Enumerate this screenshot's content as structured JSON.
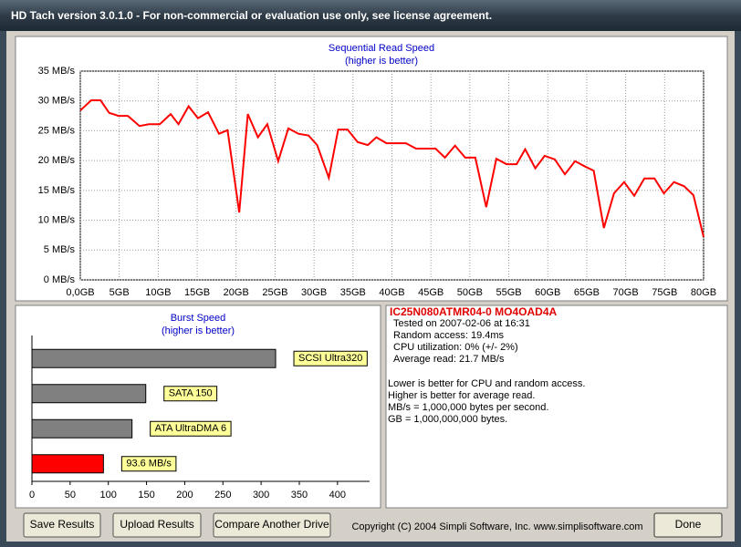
{
  "window": {
    "title": "HD Tach version 3.0.1.0  - For non-commercial or evaluation use only, see license agreement."
  },
  "chart_data": [
    {
      "type": "line",
      "title": "Sequential Read Speed",
      "subtitle": "(higher is better)",
      "color": "#ff0000",
      "grid": true,
      "x": [
        0.0,
        1.4,
        2.6,
        3.7,
        4.9,
        6.1,
        7.6,
        8.8,
        10.2,
        11.6,
        12.6,
        13.9,
        15.1,
        16.4,
        17.8,
        18.9,
        20.4,
        21.5,
        22.8,
        24.0,
        25.4,
        26.7,
        28.0,
        29.3,
        30.4,
        31.9,
        33.1,
        34.3,
        35.6,
        36.9,
        38.0,
        39.3,
        40.6,
        41.8,
        43.1,
        44.3,
        45.6,
        46.8,
        48.1,
        49.4,
        50.7,
        52.1,
        53.4,
        54.7,
        56.0,
        57.1,
        58.4,
        59.6,
        60.9,
        62.2,
        63.5,
        64.8,
        65.9,
        67.2,
        68.5,
        69.8,
        71.1,
        72.4,
        73.7,
        74.9,
        76.2,
        77.5,
        78.7,
        80.0
      ],
      "values": [
        28.4,
        30.1,
        30.1,
        28.0,
        27.5,
        27.5,
        25.8,
        26.1,
        26.1,
        27.8,
        26.1,
        29.1,
        27.1,
        28.1,
        24.5,
        25.1,
        11.3,
        27.8,
        23.9,
        26.1,
        19.9,
        25.4,
        24.5,
        24.2,
        22.6,
        17.1,
        25.2,
        25.2,
        23.1,
        22.6,
        23.9,
        22.9,
        22.9,
        22.9,
        22.0,
        22.0,
        22.0,
        20.5,
        22.5,
        20.5,
        20.5,
        12.2,
        20.3,
        19.4,
        19.4,
        21.9,
        18.7,
        20.8,
        20.2,
        17.7,
        19.9,
        19.0,
        18.3,
        8.7,
        14.5,
        16.4,
        14.1,
        17.0,
        17.0,
        14.5,
        16.4,
        15.7,
        14.2,
        7.2
      ],
      "xlim": [
        0,
        80
      ],
      "xticks": [
        {
          "value": 0,
          "label": "0,0GB"
        },
        {
          "value": 5,
          "label": "5GB"
        },
        {
          "value": 10,
          "label": "10GB"
        },
        {
          "value": 15,
          "label": "15GB"
        },
        {
          "value": 20,
          "label": "20GB"
        },
        {
          "value": 25,
          "label": "25GB"
        },
        {
          "value": 30,
          "label": "30GB"
        },
        {
          "value": 35,
          "label": "35GB"
        },
        {
          "value": 40,
          "label": "40GB"
        },
        {
          "value": 45,
          "label": "45GB"
        },
        {
          "value": 50,
          "label": "50GB"
        },
        {
          "value": 55,
          "label": "55GB"
        },
        {
          "value": 60,
          "label": "60GB"
        },
        {
          "value": 65,
          "label": "65GB"
        },
        {
          "value": 70,
          "label": "70GB"
        },
        {
          "value": 75,
          "label": "75GB"
        },
        {
          "value": 80,
          "label": "80GB"
        }
      ],
      "ylim": [
        0,
        35
      ],
      "yticks": [
        {
          "value": 0,
          "label": "0 MB/s"
        },
        {
          "value": 5,
          "label": "5 MB/s"
        },
        {
          "value": 10,
          "label": "10 MB/s"
        },
        {
          "value": 15,
          "label": "15 MB/s"
        },
        {
          "value": 20,
          "label": "20 MB/s"
        },
        {
          "value": 25,
          "label": "25 MB/s"
        },
        {
          "value": 30,
          "label": "30 MB/s"
        },
        {
          "value": 35,
          "label": "35 MB/s"
        }
      ]
    },
    {
      "type": "bar",
      "orientation": "horizontal",
      "title": "Burst Speed",
      "subtitle": "(higher is better)",
      "categories": [
        "SCSI Ultra320",
        "SATA 150",
        "ATA UltraDMA 6",
        "93.6 MB/s"
      ],
      "values": [
        319,
        149,
        131,
        93.6
      ],
      "colors": [
        "#808080",
        "#808080",
        "#808080",
        "#ff0000"
      ],
      "xlim": [
        0,
        442
      ],
      "xticks": [
        0,
        50,
        100,
        150,
        200,
        250,
        300,
        350,
        400
      ]
    }
  ],
  "drive_info": {
    "model": "IC25N080ATMR04-0 MO4OAD4A",
    "lines": [
      "Tested on 2007-02-06 at 16:31",
      "Random access: 19.4ms",
      "CPU utilization: 0% (+/- 2%)",
      "Average read: 21.7 MB/s"
    ]
  },
  "notes": [
    "Lower is better for CPU and random access.",
    "Higher is better for average read.",
    "MB/s = 1,000,000 bytes per second.",
    "GB = 1,000,000,000 bytes."
  ],
  "buttons": [
    "Save Results",
    "Upload Results",
    "Compare Another Drive",
    "Done"
  ],
  "copyright": "Copyright (C) 2004 Simpli Software, Inc. www.simplisoftware.com"
}
